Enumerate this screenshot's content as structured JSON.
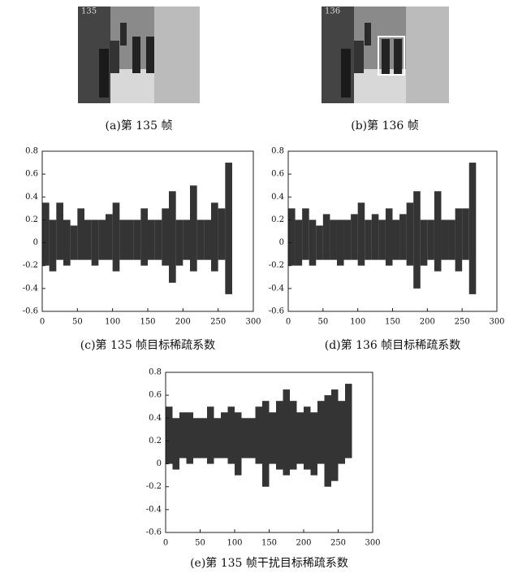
{
  "images": [
    {
      "caption": "(a)第 135 帧",
      "overlay": "135"
    },
    {
      "caption": "(b)第 136 帧",
      "overlay": "136"
    }
  ],
  "chart_data": [
    {
      "type": "band",
      "caption": "(c)第 135 帧目标稀疏系数",
      "x": [
        5,
        15,
        25,
        35,
        45,
        55,
        65,
        75,
        85,
        95,
        105,
        115,
        125,
        135,
        145,
        155,
        165,
        175,
        185,
        195,
        205,
        215,
        225,
        235,
        245,
        255,
        265
      ],
      "upper": [
        0.35,
        0.2,
        0.35,
        0.2,
        0.15,
        0.3,
        0.2,
        0.2,
        0.2,
        0.25,
        0.35,
        0.2,
        0.2,
        0.2,
        0.3,
        0.2,
        0.2,
        0.3,
        0.45,
        0.2,
        0.2,
        0.5,
        0.2,
        0.2,
        0.35,
        0.3,
        0.7
      ],
      "lower": [
        -0.2,
        -0.25,
        -0.15,
        -0.2,
        -0.15,
        -0.15,
        -0.15,
        -0.2,
        -0.15,
        -0.15,
        -0.25,
        -0.15,
        -0.15,
        -0.15,
        -0.2,
        -0.15,
        -0.15,
        -0.2,
        -0.35,
        -0.2,
        -0.15,
        -0.25,
        -0.15,
        -0.15,
        -0.25,
        -0.15,
        -0.45
      ],
      "color": "#111111",
      "xlim": [
        0,
        300
      ],
      "xticks": [
        0,
        50,
        100,
        150,
        200,
        250,
        300
      ],
      "ylim": [
        -0.6,
        0.8
      ],
      "yticks": [
        -0.6,
        -0.4,
        -0.2,
        0,
        0.2,
        0.4,
        0.6,
        0.8
      ]
    },
    {
      "type": "band",
      "caption": "(d)第 136 帧目标稀疏系数",
      "x": [
        5,
        15,
        25,
        35,
        45,
        55,
        65,
        75,
        85,
        95,
        105,
        115,
        125,
        135,
        145,
        155,
        165,
        175,
        185,
        195,
        205,
        215,
        225,
        235,
        245,
        255,
        265
      ],
      "upper": [
        0.3,
        0.2,
        0.3,
        0.2,
        0.15,
        0.25,
        0.2,
        0.2,
        0.2,
        0.25,
        0.35,
        0.2,
        0.25,
        0.2,
        0.3,
        0.2,
        0.25,
        0.35,
        0.45,
        0.2,
        0.2,
        0.45,
        0.2,
        0.2,
        0.3,
        0.3,
        0.7
      ],
      "lower": [
        -0.2,
        -0.2,
        -0.15,
        -0.2,
        -0.15,
        -0.15,
        -0.15,
        -0.2,
        -0.15,
        -0.15,
        -0.2,
        -0.15,
        -0.15,
        -0.15,
        -0.2,
        -0.15,
        -0.15,
        -0.2,
        -0.4,
        -0.2,
        -0.15,
        -0.25,
        -0.15,
        -0.15,
        -0.25,
        -0.15,
        -0.45
      ],
      "color": "#111111",
      "xlim": [
        0,
        300
      ],
      "xticks": [
        0,
        50,
        100,
        150,
        200,
        250,
        300
      ],
      "ylim": [
        -0.6,
        0.8
      ],
      "yticks": [
        -0.6,
        -0.4,
        -0.2,
        0,
        0.2,
        0.4,
        0.6,
        0.8
      ]
    },
    {
      "type": "band",
      "caption": "(e)第 135 帧干扰目标稀疏系数",
      "x": [
        5,
        15,
        25,
        35,
        45,
        55,
        65,
        75,
        85,
        95,
        105,
        115,
        125,
        135,
        145,
        155,
        165,
        175,
        185,
        195,
        205,
        215,
        225,
        235,
        245,
        255,
        265
      ],
      "upper": [
        0.5,
        0.4,
        0.45,
        0.45,
        0.4,
        0.4,
        0.5,
        0.4,
        0.45,
        0.5,
        0.45,
        0.4,
        0.4,
        0.5,
        0.55,
        0.45,
        0.55,
        0.65,
        0.55,
        0.45,
        0.5,
        0.45,
        0.55,
        0.6,
        0.65,
        0.55,
        0.7
      ],
      "lower": [
        0.0,
        -0.05,
        0.05,
        0.0,
        0.05,
        0.05,
        0.0,
        0.05,
        0.05,
        0.0,
        -0.1,
        0.05,
        0.05,
        0.0,
        -0.2,
        0.0,
        -0.05,
        -0.1,
        -0.05,
        0.0,
        -0.05,
        -0.1,
        0.0,
        -0.2,
        -0.15,
        0.0,
        0.05
      ],
      "color": "#111111",
      "xlim": [
        0,
        300
      ],
      "xticks": [
        0,
        50,
        100,
        150,
        200,
        250,
        300
      ],
      "ylim": [
        -0.6,
        0.8
      ],
      "yticks": [
        -0.6,
        -0.4,
        -0.2,
        0,
        0.2,
        0.4,
        0.6,
        0.8
      ]
    }
  ]
}
